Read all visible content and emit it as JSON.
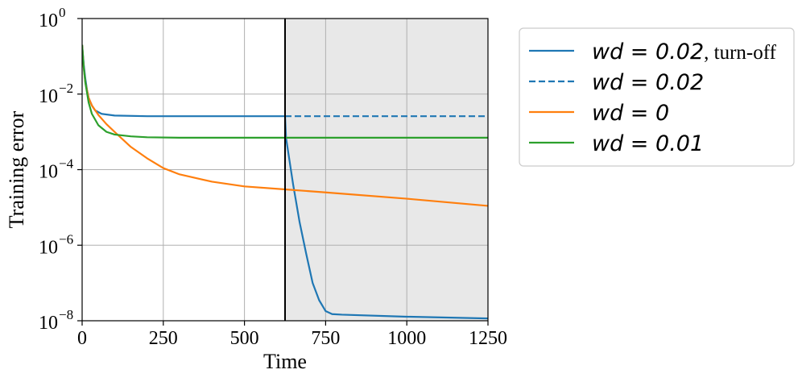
{
  "chart_data": {
    "type": "line",
    "title": "",
    "xlabel": "Time",
    "ylabel": "Training error",
    "xlim": [
      0,
      1250
    ],
    "ylim": [
      1e-08,
      1
    ],
    "yscale": "log",
    "grid": true,
    "legend_position": "outside-right",
    "x_ticks": [
      0,
      250,
      500,
      750,
      1000,
      1250
    ],
    "x_tick_labels": [
      "0",
      "250",
      "500",
      "750",
      "1000",
      "1250"
    ],
    "y_ticks": [
      {
        "value": 1,
        "base": "10",
        "exponent": "0"
      },
      {
        "value": 0.01,
        "base": "10",
        "exponent": "−2"
      },
      {
        "value": 0.0001,
        "base": "10",
        "exponent": "−4"
      },
      {
        "value": 1e-06,
        "base": "10",
        "exponent": "−6"
      },
      {
        "value": 1e-08,
        "base": "10",
        "exponent": "−8"
      }
    ],
    "turnoff_time": 625,
    "shaded_region": {
      "x_start": 625,
      "x_end": 1250,
      "color": "#e8e8e8"
    },
    "series": [
      {
        "legend_main": "wd = 0.02",
        "legend_suffix": ", turn-off",
        "color": "#1f77b4",
        "style": "solid",
        "points": [
          [
            0,
            0.2
          ],
          [
            5,
            0.06
          ],
          [
            10,
            0.025
          ],
          [
            15,
            0.013
          ],
          [
            20,
            0.008
          ],
          [
            30,
            0.005
          ],
          [
            40,
            0.0037
          ],
          [
            60,
            0.003
          ],
          [
            100,
            0.0027
          ],
          [
            200,
            0.0026
          ],
          [
            400,
            0.0026
          ],
          [
            625,
            0.0026
          ],
          [
            628,
            0.0007
          ],
          [
            650,
            4e-05
          ],
          [
            670,
            4e-06
          ],
          [
            690,
            6e-07
          ],
          [
            710,
            1e-07
          ],
          [
            730,
            3.5e-08
          ],
          [
            750,
            1.8e-08
          ],
          [
            770,
            1.5e-08
          ],
          [
            800,
            1.45e-08
          ],
          [
            1000,
            1.28e-08
          ],
          [
            1250,
            1.15e-08
          ]
        ]
      },
      {
        "legend_main": "wd = 0.02",
        "legend_suffix": "",
        "color": "#1f77b4",
        "style": "dashed",
        "points": [
          [
            625,
            0.0026
          ],
          [
            800,
            0.0026
          ],
          [
            1000,
            0.0026
          ],
          [
            1250,
            0.0026
          ]
        ]
      },
      {
        "legend_main": "wd = 0",
        "legend_suffix": "",
        "color": "#ff7f0e",
        "style": "solid",
        "points": [
          [
            0,
            0.2
          ],
          [
            5,
            0.05
          ],
          [
            10,
            0.02
          ],
          [
            20,
            0.008
          ],
          [
            30,
            0.005
          ],
          [
            50,
            0.0028
          ],
          [
            75,
            0.0016
          ],
          [
            100,
            0.001
          ],
          [
            150,
            0.0004
          ],
          [
            200,
            0.0002
          ],
          [
            250,
            0.00011
          ],
          [
            300,
            7.5e-05
          ],
          [
            400,
            4.8e-05
          ],
          [
            500,
            3.6e-05
          ],
          [
            625,
            3e-05
          ],
          [
            750,
            2.5e-05
          ],
          [
            1000,
            1.7e-05
          ],
          [
            1250,
            1.1e-05
          ]
        ]
      },
      {
        "legend_main": "wd = 0.01",
        "legend_suffix": "",
        "color": "#2ca02c",
        "style": "solid",
        "points": [
          [
            0,
            0.2
          ],
          [
            5,
            0.05
          ],
          [
            10,
            0.02
          ],
          [
            20,
            0.006
          ],
          [
            30,
            0.003
          ],
          [
            50,
            0.0015
          ],
          [
            75,
            0.001
          ],
          [
            100,
            0.00085
          ],
          [
            150,
            0.00076
          ],
          [
            200,
            0.00072
          ],
          [
            300,
            0.0007
          ],
          [
            625,
            0.0007
          ],
          [
            1000,
            0.0007
          ],
          [
            1250,
            0.0007
          ]
        ]
      }
    ]
  }
}
